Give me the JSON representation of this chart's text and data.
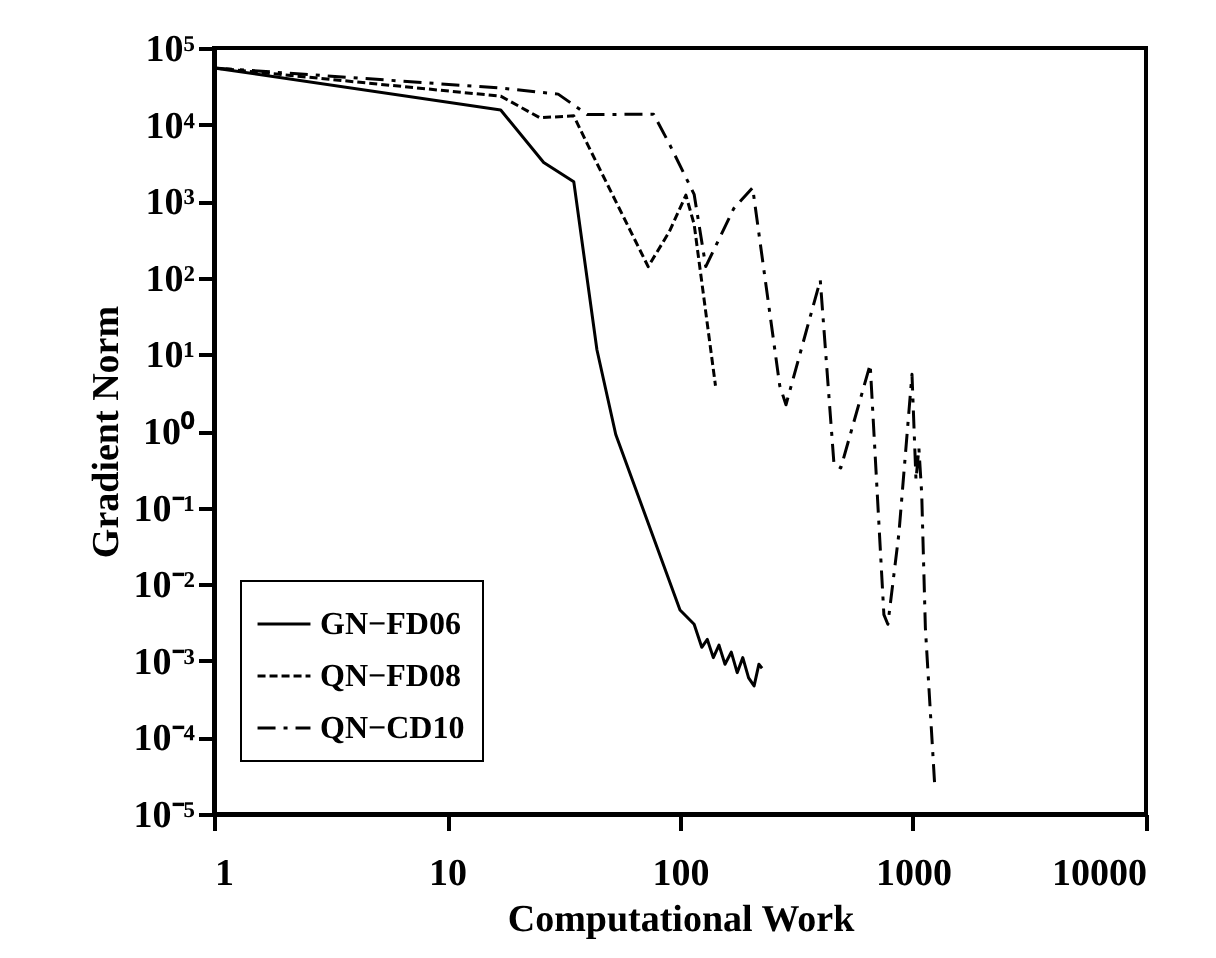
{
  "chart_data": {
    "type": "line",
    "xlabel": "Computational Work",
    "ylabel": "Gradient Norm",
    "log": "xy",
    "grid": false,
    "legend": "bottom left",
    "xlim": [
      1,
      10000
    ],
    "xticks": [
      1,
      10,
      100,
      {
        "value": 1000,
        "label": "1000"
      },
      {
        "value": 10000,
        "label": "10000"
      }
    ],
    "ylim": [
      1e-05,
      100000
    ],
    "yticks": [
      {
        "value": 100000,
        "label": "10⁵"
      },
      {
        "value": 10000,
        "label": "10⁴"
      },
      {
        "value": 1000,
        "label": "10³"
      },
      {
        "value": 100,
        "label": "10²"
      },
      {
        "value": 10,
        "label": "10¹"
      },
      {
        "value": 1,
        "label": "10⁰"
      },
      {
        "value": 0.1,
        "label": "10⁻¹"
      },
      {
        "value": 0.01,
        "label": "10⁻²"
      },
      {
        "value": 0.001,
        "label": "10⁻³"
      },
      {
        "value": 0.0001,
        "label": "10⁻⁴"
      },
      {
        "value": 1e-05,
        "label": "10⁻⁵"
      }
    ],
    "series": [
      {
        "name": "GN−FD06",
        "color": "#000000",
        "line_style": "solid",
        "x": [
          1,
          17,
          26,
          35,
          44,
          53,
          100,
          115,
          124,
          131,
          139,
          147,
          156,
          166,
          176,
          186,
          197,
          208,
          218,
          225
        ],
        "values": [
          55000,
          15500,
          3200,
          1800,
          11.5,
          0.9,
          0.0046,
          0.003,
          0.0015,
          0.0019,
          0.0011,
          0.0016,
          0.0009,
          0.0013,
          0.0007,
          0.0011,
          0.0006,
          0.00047,
          0.0009,
          0.0008
        ]
      },
      {
        "name": "QN−FD08",
        "color": "#000000",
        "line_style": "dashed",
        "x": [
          1,
          17,
          25,
          35,
          40,
          73,
          90,
          106,
          115,
          142
        ],
        "values": [
          55000,
          23500,
          12300,
          13000,
          5600,
          140,
          400,
          1200,
          500,
          3.9
        ]
      },
      {
        "name": "QN−CD10",
        "color": "#000000",
        "line_style": "dashdot",
        "x": [
          1,
          17,
          30,
          35,
          40,
          77,
          90,
          115,
          129,
          170,
          205,
          268,
          285,
          400,
          458,
          490,
          655,
          750,
          780,
          870,
          990,
          1030,
          1060,
          1090,
          1130,
          1240
        ],
        "values": [
          55000,
          30000,
          25000,
          18000,
          13500,
          13700,
          5600,
          1230,
          140,
          800,
          1500,
          3.9,
          2.2,
          93,
          0.37,
          0.33,
          7.4,
          0.004,
          0.003,
          0.046,
          5.5,
          0.23,
          0.6,
          0.15,
          0.0027,
          2.3e-05
        ]
      }
    ]
  }
}
